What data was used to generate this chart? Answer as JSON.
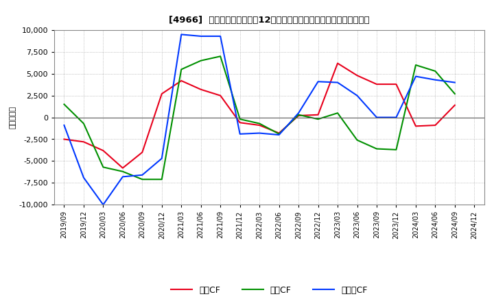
{
  "title": "[4966]  キャッシュフローの12か月移動合計の対前年同期増減額の推移",
  "ylabel": "（百万円）",
  "x_labels": [
    "2019/09",
    "2019/12",
    "2020/03",
    "2020/06",
    "2020/09",
    "2020/12",
    "2021/03",
    "2021/06",
    "2021/09",
    "2021/12",
    "2022/03",
    "2022/06",
    "2022/09",
    "2022/12",
    "2023/03",
    "2023/06",
    "2023/09",
    "2023/12",
    "2024/03",
    "2024/06",
    "2024/09",
    "2024/12"
  ],
  "operating_cf": [
    -2500,
    -2800,
    -3800,
    -5800,
    -4000,
    2700,
    4200,
    3200,
    2500,
    -600,
    -900,
    -1800,
    200,
    300,
    6200,
    4800,
    3800,
    3800,
    -1000,
    -900,
    1400,
    null
  ],
  "investing_cf": [
    1500,
    -700,
    -5700,
    -6200,
    -7100,
    -7100,
    5500,
    6500,
    7000,
    -200,
    -700,
    -1900,
    300,
    -200,
    500,
    -2600,
    -3600,
    -3700,
    6000,
    5300,
    2700,
    null
  ],
  "free_cf": [
    -900,
    -6900,
    -10000,
    -6800,
    -6600,
    -4700,
    9500,
    9300,
    9300,
    -1900,
    -1800,
    -2000,
    500,
    4100,
    4000,
    2500,
    0,
    0,
    4700,
    4300,
    4000,
    null
  ],
  "operating_color": "#e8001c",
  "investing_color": "#009000",
  "free_color": "#0038ff",
  "ylim": [
    -10000,
    10000
  ],
  "yticks": [
    -10000,
    -7500,
    -5000,
    -2500,
    0,
    2500,
    5000,
    7500,
    10000
  ],
  "bg_color": "#ffffff",
  "plot_bg_color": "#ffffff",
  "grid_color": "#aaaaaa",
  "legend_labels": [
    "営業CF",
    "投資CF",
    "フリーCF"
  ]
}
